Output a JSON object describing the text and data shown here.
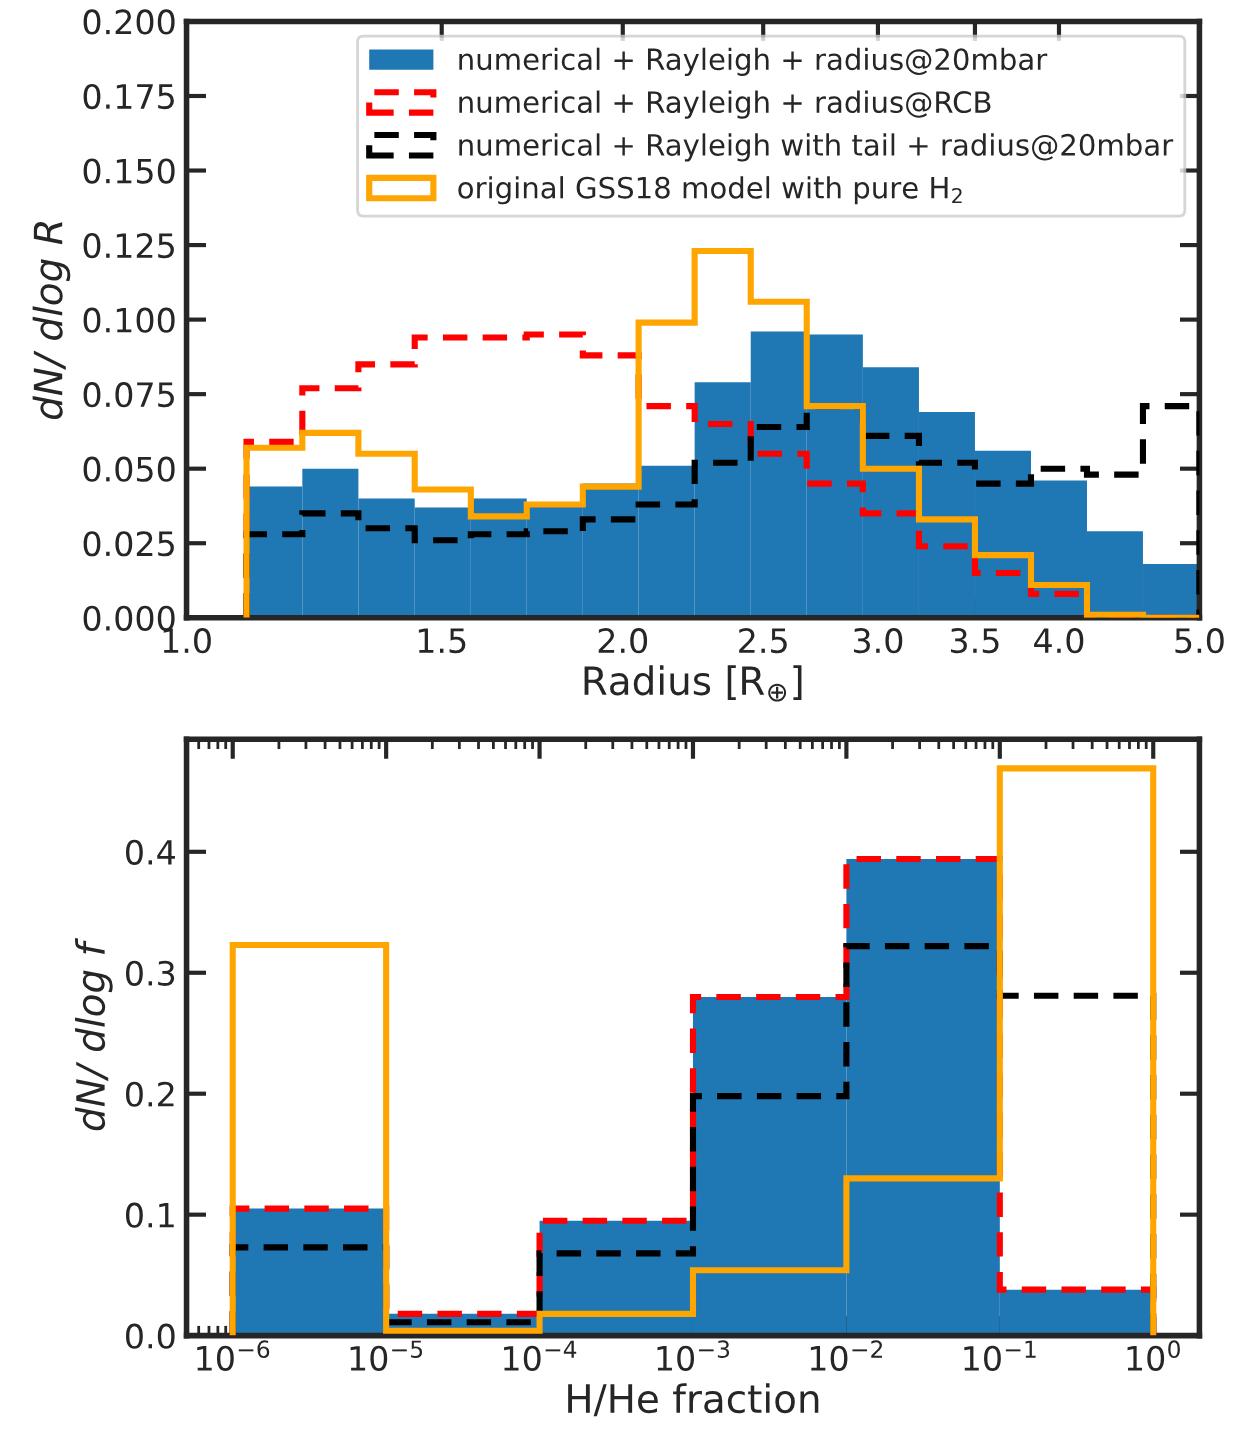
{
  "chart_data": [
    {
      "type": "histogram",
      "xlabel": "Radius [R$_{⊕}$]",
      "ylabel": "dN/ dlog R",
      "log": "x",
      "grid": false,
      "legend": "top right",
      "bins": [
        1.1,
        1.202,
        1.314,
        1.437,
        1.571,
        1.717,
        1.877,
        2.051,
        2.242,
        2.451,
        2.679,
        2.929,
        3.202,
        3.5,
        3.826,
        4.182,
        4.571,
        5.0
      ],
      "xlim": [
        1.0,
        5.0
      ],
      "xticks": [
        {
          "value": 1,
          "label": "1.0"
        },
        1.5,
        {
          "value": 2,
          "label": "2.0"
        },
        2.5,
        {
          "value": 3,
          "label": "3.0"
        },
        3.5,
        {
          "value": 4,
          "label": "4.0"
        },
        {
          "value": 5,
          "label": "5.0"
        }
      ],
      "ylim": [
        0,
        0.2
      ],
      "yticks": [
        {
          "value": 0,
          "label": "0.000"
        },
        {
          "value": 0.025,
          "label": "0.025"
        },
        {
          "value": 0.05,
          "label": "0.050"
        },
        {
          "value": 0.075,
          "label": "0.075"
        },
        {
          "value": 0.1,
          "label": "0.100"
        },
        {
          "value": 0.125,
          "label": "0.125"
        },
        {
          "value": 0.15,
          "label": "0.150"
        },
        {
          "value": 0.175,
          "label": "0.175"
        },
        {
          "value": 0.2,
          "label": "0.200"
        }
      ],
      "series": [
        {
          "name": "numerical + Rayleigh + radius@20mbar",
          "color": "#1f77b4",
          "values": [
            0.044,
            0.05,
            0.04,
            0.037,
            0.04,
            0.038,
            0.045,
            0.051,
            0.079,
            0.096,
            0.095,
            0.084,
            0.069,
            0.056,
            0.046,
            0.029,
            0.018
          ]
        },
        {
          "name": "numerical + Rayleigh + radius@RCB",
          "line_style": "dashed",
          "color": "#ff0000",
          "values": [
            0.059,
            0.077,
            0.085,
            0.094,
            0.094,
            0.095,
            0.088,
            0.071,
            0.065,
            0.055,
            0.045,
            0.035,
            0.024,
            0.015,
            0.008,
            0.0,
            0.0
          ]
        },
        {
          "name": "numerical + Rayleigh with tail + radius@20mbar",
          "line_style": "dashed",
          "color": "#000000",
          "values": [
            0.028,
            0.035,
            0.03,
            0.026,
            0.028,
            0.029,
            0.033,
            0.038,
            0.052,
            0.064,
            0.071,
            0.061,
            0.052,
            0.045,
            0.05,
            0.048,
            0.071
          ]
        },
        {
          "name": "original GSS18 model with pure H$_{2}$",
          "line_style": "solid",
          "color": "#ffa500",
          "values": [
            0.057,
            0.062,
            0.055,
            0.043,
            0.034,
            0.038,
            0.044,
            0.099,
            0.123,
            0.106,
            0.071,
            0.05,
            0.033,
            0.021,
            0.011,
            0.001,
            0.0
          ]
        }
      ]
    },
    {
      "type": "histogram",
      "xlabel": "H/He fraction",
      "ylabel": "dN/ dlog f",
      "log": "x",
      "grid": false,
      "legend": false,
      "bins": [
        1e-06,
        1e-05,
        0.0001,
        0.001,
        0.01,
        0.1,
        1.0
      ],
      "xlim": [
        5e-07,
        2.0
      ],
      "xticks": [
        {
          "value": 1e-06,
          "label": "10$^{−6}$"
        },
        {
          "value": 1e-05,
          "label": "10$^{−5}$"
        },
        {
          "value": 0.0001,
          "label": "10$^{−4}$"
        },
        {
          "value": 0.001,
          "label": "10$^{−3}$"
        },
        {
          "value": 0.01,
          "label": "10$^{−2}$"
        },
        {
          "value": 0.1,
          "label": "10$^{−1}$"
        },
        {
          "value": 1.0,
          "label": "10$^{0}$"
        }
      ],
      "ylim": [
        0,
        0.493
      ],
      "yticks": [
        {
          "value": 0,
          "label": "0.0"
        },
        0.1,
        0.2,
        0.3,
        0.4
      ],
      "series": [
        {
          "color": "#1f77b4",
          "values": [
            0.105,
            0.018,
            0.095,
            0.28,
            0.394,
            0.038
          ]
        },
        {
          "line_style": "dashed",
          "color": "#ff0000",
          "values": [
            0.105,
            0.018,
            0.095,
            0.28,
            0.394,
            0.038
          ]
        },
        {
          "line_style": "dashed",
          "color": "#000000",
          "values": [
            0.073,
            0.011,
            0.068,
            0.198,
            0.322,
            0.281
          ]
        },
        {
          "line_style": "solid",
          "color": "#ffa500",
          "values": [
            0.323,
            0.004,
            0.018,
            0.054,
            0.13,
            0.469
          ]
        }
      ]
    }
  ]
}
